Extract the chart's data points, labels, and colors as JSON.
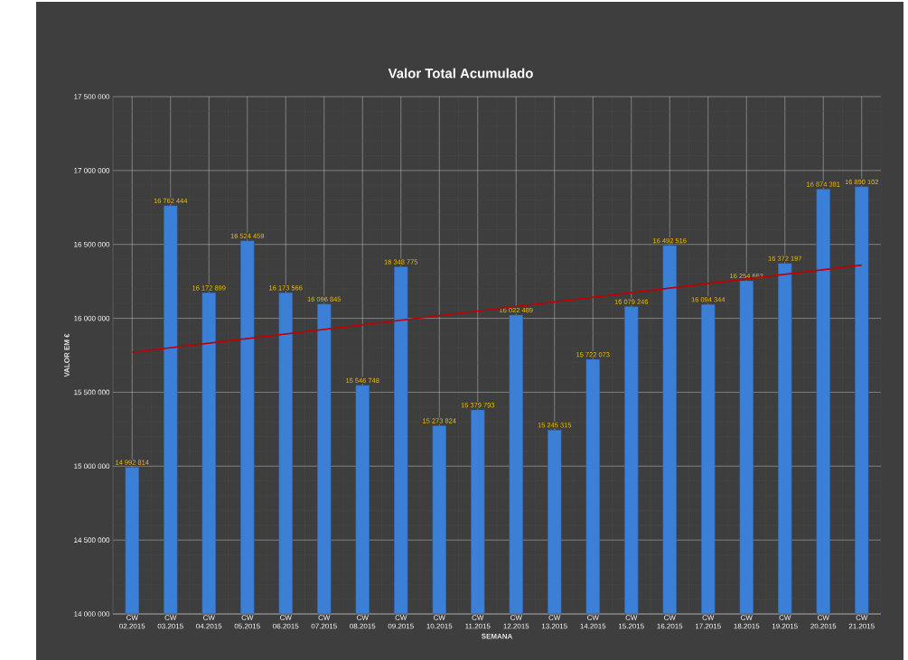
{
  "chart_data": {
    "type": "bar",
    "title": "Valor Total Acumulado",
    "xlabel": "SEMANA",
    "ylabel": "VALOR EM €",
    "categories": [
      "CW 02.2015",
      "CW 03.2015",
      "CW 04.2015",
      "CW 05.2015",
      "CW 06.2015",
      "CW 07.2015",
      "CW 08.2015",
      "CW 09.2015",
      "CW 10.2015",
      "CW 11.2015",
      "CW 12.2015",
      "CW 13.2015",
      "CW 14.2015",
      "CW 15.2015",
      "CW 16.2015",
      "CW 17.2015",
      "CW 18.2015",
      "CW 19.2015",
      "CW 20.2015",
      "CW 21.2015"
    ],
    "series": [
      {
        "color": "#3b7fd6",
        "values": [
          14992814,
          16762444,
          16172899,
          16524459,
          16173566,
          16096845,
          15546748,
          16348775,
          15273824,
          15379793,
          16022489,
          15245315,
          15722073,
          16079246,
          16492516,
          16094344,
          16254663,
          16372197,
          16874381,
          16890102
        ],
        "value_labels": [
          "14 992 814",
          "16 762 444",
          "16 172 899",
          "16 524 459",
          "16 173 566",
          "16 096 845",
          "15 546 748",
          "16 348 775",
          "15 273 824",
          "15 379 793",
          "16 022 489",
          "15 245 315",
          "15 722 073",
          "16 079 246",
          "16 492 516",
          "16 094 344",
          "16 254 663",
          "16 372 197",
          "16 874 381",
          "16 890 102"
        ]
      },
      {
        "type": "line",
        "color": "#c00000",
        "x": [
          "CW 02.2015",
          "CW 21.2015"
        ],
        "values": [
          15770000,
          16360000
        ]
      }
    ],
    "ylim": [
      14000000,
      17500000
    ],
    "yticks": [
      {
        "value": 14000000,
        "label": "14 000 000"
      },
      {
        "value": 14500000,
        "label": "14 500 000"
      },
      {
        "value": 15000000,
        "label": "15 000 000"
      },
      {
        "value": 15500000,
        "label": "15 500 000"
      },
      {
        "value": 16000000,
        "label": "16 000 000"
      },
      {
        "value": 16500000,
        "label": "16 500 000"
      },
      {
        "value": 17000000,
        "label": "17 000 000"
      },
      {
        "value": 17500000,
        "label": "17 500 000"
      }
    ],
    "grid": true
  }
}
